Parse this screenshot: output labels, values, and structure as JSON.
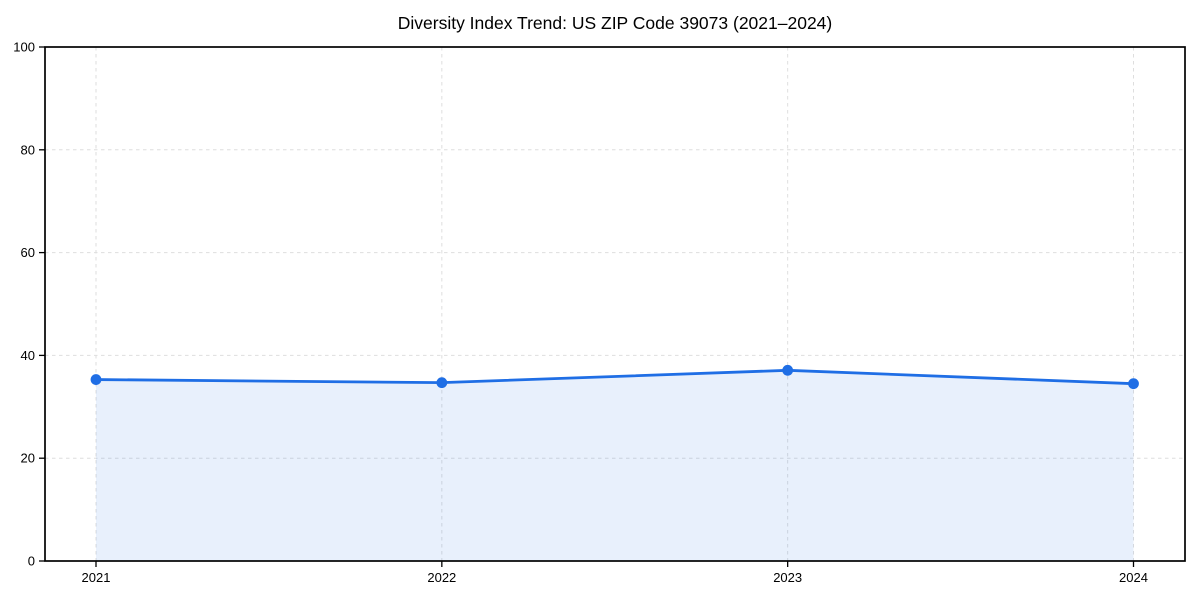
{
  "chart_data": {
    "type": "area",
    "title": "Diversity Index Trend: US ZIP Code 39073 (2021–2024)",
    "categories": [
      "2021",
      "2022",
      "2023",
      "2024"
    ],
    "values": [
      35.3,
      34.7,
      37.1,
      34.5
    ],
    "xlabel": "",
    "ylabel": "",
    "ylim": [
      0,
      100
    ],
    "yticks": [
      0,
      20,
      40,
      60,
      80,
      100
    ],
    "grid": true,
    "legend": "none",
    "colors": {
      "line": "#1f6ee5",
      "marker": "#1f6ee5",
      "area_fill": "rgba(31,110,229,0.10)",
      "grid": "#dedede",
      "spine": "#000000",
      "text": "#000000",
      "background": "#ffffff"
    }
  }
}
